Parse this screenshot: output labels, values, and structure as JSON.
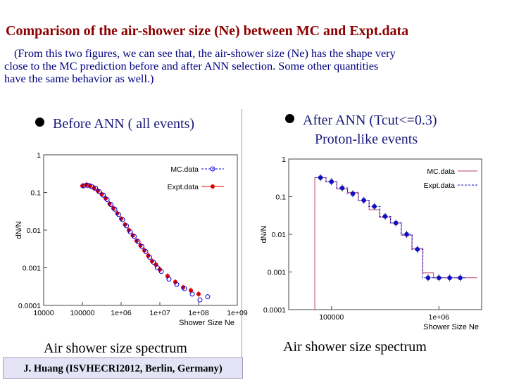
{
  "header": {
    "title": "Comparison of the air-shower size (Ne) between MC and Expt.data",
    "desc_line1": "(From this two figures, we can see that, the air-shower size (Ne) has the shape very",
    "desc_line2": "close to the MC prediction before and after ANN selection. Some other quantities",
    "desc_line3": "have the same behavior as well.)"
  },
  "left_panel": {
    "bullet_text": "Before ANN ( all events)",
    "caption": "Air shower size spectrum"
  },
  "right_panel": {
    "bullet_text": "After ANN (Tcut<=0.3)",
    "bullet_sub": "Proton-like events",
    "caption": "Air shower size spectrum"
  },
  "credit": "J. Huang (ISVHECRI2012, Berlin, Germany)",
  "colors": {
    "title": "#8b0000",
    "text": "#000080",
    "mc": "#0000dd",
    "expt": "#dd0000",
    "expt_right": "#1010c0",
    "mc_hist": "#c04070"
  },
  "chart_data": [
    {
      "type": "scatter",
      "xscale": "log",
      "yscale": "log",
      "xlim": [
        10000,
        1000000000
      ],
      "ylim": [
        0.0001,
        1
      ],
      "xlabel": "Shower Size Ne",
      "ylabel": "dN/N",
      "xticks": [
        "10000",
        "100000",
        "1e+06",
        "1e+07",
        "1e+08",
        "1e+09"
      ],
      "yticks": [
        "0.0001",
        "0.001",
        "0.01",
        "0.1",
        "1"
      ],
      "legend_position": "top-right",
      "series": [
        {
          "name": "MC.data",
          "marker": "open-circle",
          "x": [
            100000,
            126000,
            158000,
            200000,
            251000,
            316000,
            398000,
            501000,
            631000,
            794000,
            1000000,
            1260000,
            1580000,
            2000000,
            2510000,
            3160000,
            3980000,
            5010000,
            6310000,
            7940000,
            10000000,
            15800000,
            25100000,
            39800000,
            63100000,
            100000000,
            158000000
          ],
          "y": [
            0.15,
            0.155,
            0.145,
            0.13,
            0.105,
            0.085,
            0.065,
            0.048,
            0.036,
            0.026,
            0.019,
            0.013,
            0.009,
            0.0068,
            0.005,
            0.0037,
            0.0027,
            0.0019,
            0.0014,
            0.001,
            0.0008,
            0.0005,
            0.00036,
            0.00028,
            0.0002,
            0.00014,
            0.00017
          ]
        },
        {
          "name": "Expt.data",
          "marker": "filled-circle",
          "x": [
            100000,
            126000,
            158000,
            200000,
            251000,
            316000,
            398000,
            501000,
            631000,
            794000,
            1000000,
            1260000,
            1580000,
            2000000,
            2510000,
            3160000,
            3980000,
            5010000,
            6310000,
            7940000,
            10000000,
            15800000,
            25100000,
            39800000,
            63100000,
            100000000
          ],
          "y": [
            0.15,
            0.16,
            0.15,
            0.13,
            0.11,
            0.09,
            0.07,
            0.05,
            0.038,
            0.028,
            0.02,
            0.014,
            0.01,
            0.0072,
            0.0052,
            0.0039,
            0.0029,
            0.0021,
            0.0015,
            0.0012,
            0.0009,
            0.0006,
            0.00042,
            0.0003,
            0.00025,
            0.0002
          ]
        }
      ]
    },
    {
      "type": "line",
      "xscale": "log",
      "yscale": "log",
      "xlim": [
        40000,
        2500000
      ],
      "ylim": [
        0.0001,
        1
      ],
      "xlabel": "Shower Size Ne",
      "ylabel": "dN/N",
      "xticks": [
        "100000",
        "1e+06"
      ],
      "yticks": [
        "0.0001",
        "0.001",
        "0.01",
        "0.1",
        "1"
      ],
      "legend_position": "top-right",
      "series": [
        {
          "name": "MC.data",
          "style": "step",
          "x": [
            70000,
            89000,
            112000,
            141000,
            178000,
            224000,
            282000,
            355000,
            447000,
            562000,
            708000,
            891000,
            1120000,
            1410000,
            1780000
          ],
          "y": [
            0.32,
            0.25,
            0.16,
            0.13,
            0.08,
            0.045,
            0.028,
            0.02,
            0.0095,
            0.0042,
            0.00095,
            0.0007,
            0.0007,
            0.0007,
            0.0007
          ]
        },
        {
          "name": "Expt.data",
          "style": "dashed-step",
          "marker": "filled-circle",
          "x": [
            79000,
            100000,
            126000,
            158000,
            200000,
            251000,
            316000,
            398000,
            501000,
            631000,
            794000,
            1000000,
            1260000,
            1580000
          ],
          "y": [
            0.32,
            0.25,
            0.17,
            0.12,
            0.08,
            0.055,
            0.03,
            0.02,
            0.01,
            0.004,
            0.0007,
            0.0007,
            0.0007,
            0.0007
          ]
        }
      ]
    }
  ]
}
